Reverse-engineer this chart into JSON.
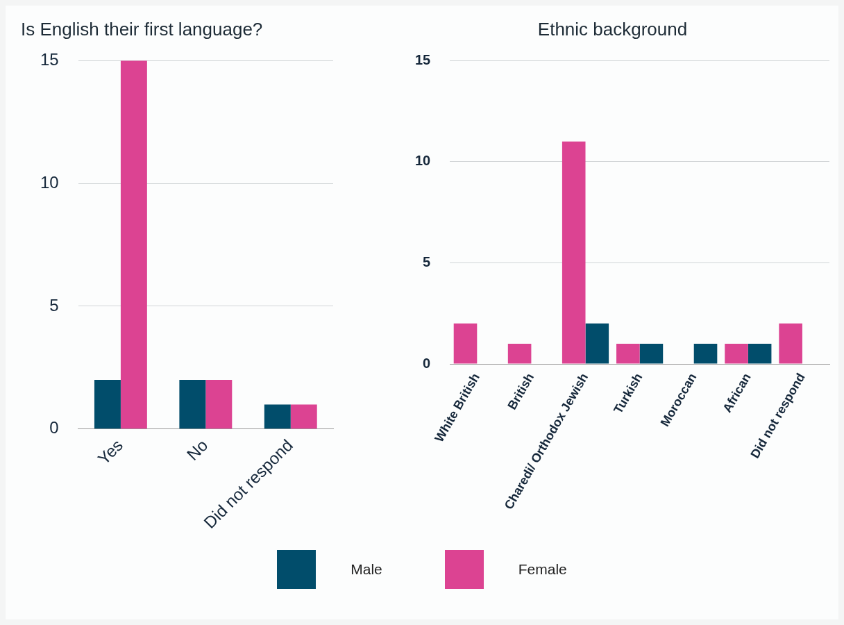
{
  "chart_data": [
    {
      "type": "bar",
      "title": "Is English their first language?",
      "categories": [
        "Yes",
        "No",
        "Did not respond"
      ],
      "series": [
        {
          "name": "Male",
          "color": "#014d6b",
          "values": [
            2,
            2,
            1
          ]
        },
        {
          "name": "Female",
          "color": "#dc4392",
          "values": [
            15,
            2,
            1
          ]
        }
      ],
      "ylim": [
        0,
        15
      ],
      "yticks": [
        0,
        5,
        10,
        15
      ],
      "grid": "y",
      "legend": "bottom"
    },
    {
      "type": "bar",
      "title": "Ethnic background",
      "categories": [
        "White British",
        "British",
        "Charedi/ Orthodox Jewish",
        "Turkish",
        "Moroccan",
        "African",
        "Did not respond"
      ],
      "series": [
        {
          "color": "#dc4392",
          "values": [
            2,
            1,
            11,
            1,
            null,
            1,
            2
          ]
        },
        {
          "color": "#014d6b",
          "values": [
            null,
            null,
            2,
            1,
            1,
            1,
            null
          ]
        }
      ],
      "ylim": [
        0,
        15
      ],
      "yticks": [
        0,
        5,
        10,
        15
      ],
      "grid": "y"
    }
  ]
}
